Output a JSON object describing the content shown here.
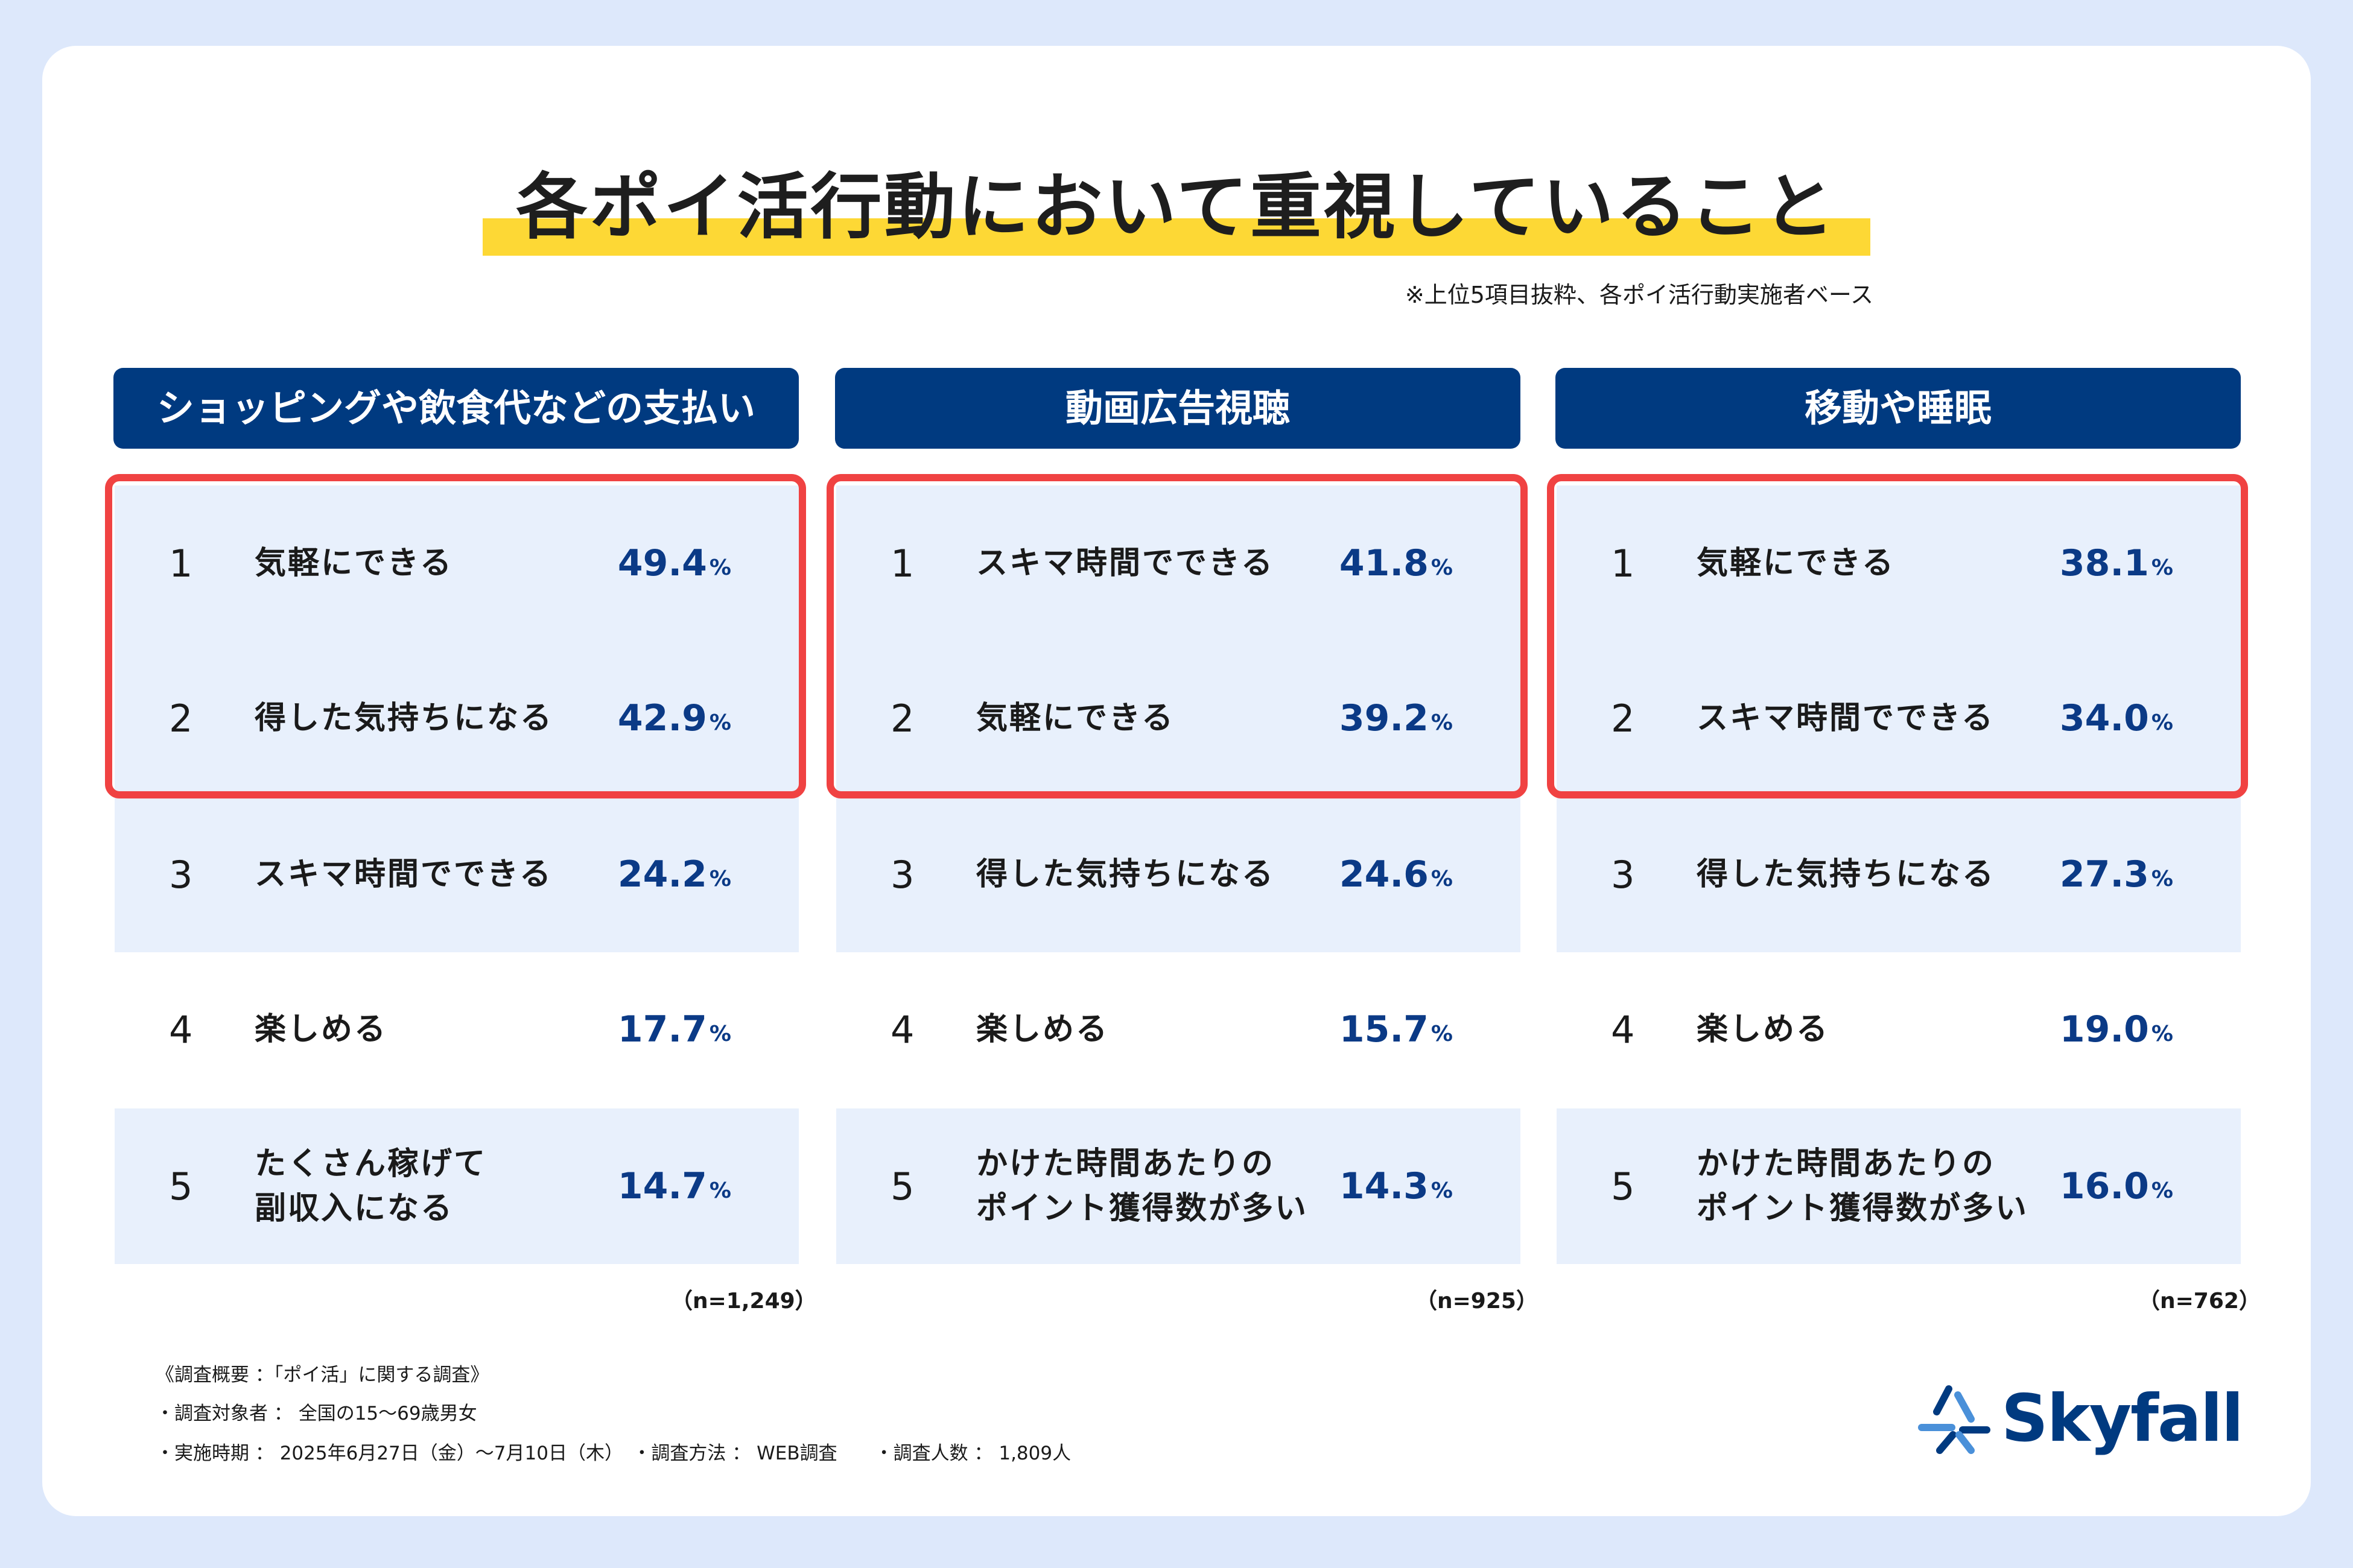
{
  "title": "各ポイ活行動において重視していること",
  "note": "※上位5項目抜粋、各ポイ活行動実施者ベース",
  "percent_unit": "%",
  "chart_data": {
    "type": "table",
    "title": "各ポイ活行動において重視していること",
    "columns": [
      {
        "header": "ショッピングや飲食代などの支払い",
        "n": "（n=1,249）",
        "rows": [
          {
            "rank": "1",
            "label": "気軽にできる",
            "value": "49.4"
          },
          {
            "rank": "2",
            "label": "得した気持ちになる",
            "value": "42.9"
          },
          {
            "rank": "3",
            "label": "スキマ時間でできる",
            "value": "24.2"
          },
          {
            "rank": "4",
            "label": "楽しめる",
            "value": "17.7"
          },
          {
            "rank": "5",
            "label": "たくさん稼げて\n副収入になる",
            "value": "14.7"
          }
        ]
      },
      {
        "header": "動画広告視聴",
        "n": "（n=925）",
        "rows": [
          {
            "rank": "1",
            "label": "スキマ時間でできる",
            "value": "41.8"
          },
          {
            "rank": "2",
            "label": "気軽にできる",
            "value": "39.2"
          },
          {
            "rank": "3",
            "label": "得した気持ちになる",
            "value": "24.6"
          },
          {
            "rank": "4",
            "label": "楽しめる",
            "value": "15.7"
          },
          {
            "rank": "5",
            "label": "かけた時間あたりの\nポイント獲得数が多い",
            "value": "14.3"
          }
        ]
      },
      {
        "header": "移動や睡眠",
        "n": "（n=762）",
        "rows": [
          {
            "rank": "1",
            "label": "気軽にできる",
            "value": "38.1"
          },
          {
            "rank": "2",
            "label": "スキマ時間でできる",
            "value": "34.0"
          },
          {
            "rank": "3",
            "label": "得した気持ちになる",
            "value": "27.3"
          },
          {
            "rank": "4",
            "label": "楽しめる",
            "value": "19.0"
          },
          {
            "rank": "5",
            "label": "かけた時間あたりの\nポイント獲得数が多い",
            "value": "16.0"
          }
        ]
      }
    ]
  },
  "footer": {
    "line1": "《調査概要 ：「ポイ活」に関する調査》",
    "line2": "・調査対象者 ： 全国の15〜69歳男女",
    "line3": "・実施時期 ： 2025年6月27日（金）〜7月10日（木）　・調査方法 ： WEB調査　　・調査人数 ： 1,809人"
  },
  "logo": {
    "text": "Skyfall"
  },
  "colors": {
    "header_bg": "#003a80",
    "row_shade": "#e8f0fc",
    "value_text": "#0b3a86",
    "highlight_box": "#f04242",
    "title_marker": "#fdd835",
    "page_bg": "#dde8fb"
  }
}
